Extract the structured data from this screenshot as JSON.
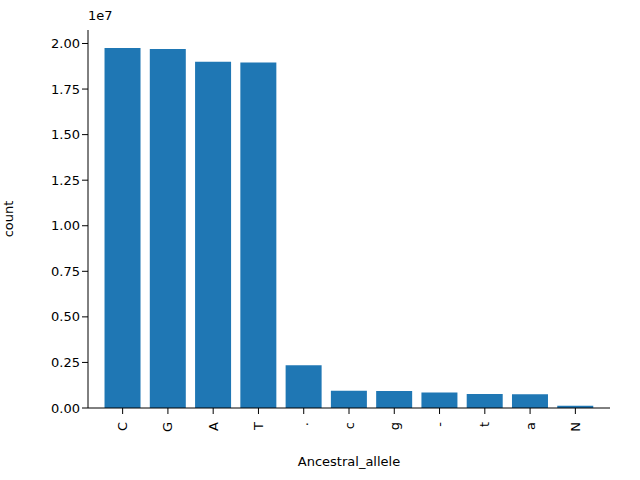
{
  "chart_data": {
    "type": "bar",
    "x_label": "Ancestral_allele",
    "y_label": "count",
    "y_offset_label": "1e7",
    "categories": [
      "C",
      "G",
      "A",
      "T",
      ".",
      "c",
      "g",
      "-",
      "t",
      "a",
      "N"
    ],
    "values": [
      1.975,
      1.97,
      1.9,
      1.895,
      0.235,
      0.095,
      0.093,
      0.085,
      0.077,
      0.076,
      0.012
    ],
    "color": "#1f77b4",
    "ylim": [
      0,
      2.074
    ],
    "yticks": [
      {
        "value": 0,
        "label": "0.00"
      },
      {
        "value": 0.25,
        "label": "0.25"
      },
      {
        "value": 0.5,
        "label": "0.50"
      },
      {
        "value": 0.75,
        "label": "0.75"
      },
      {
        "value": 1,
        "label": "1.00"
      },
      {
        "value": 1.25,
        "label": "1.25"
      },
      {
        "value": 1.5,
        "label": "1.50"
      },
      {
        "value": 1.75,
        "label": "1.75"
      },
      {
        "value": 2,
        "label": "2.00"
      }
    ]
  }
}
